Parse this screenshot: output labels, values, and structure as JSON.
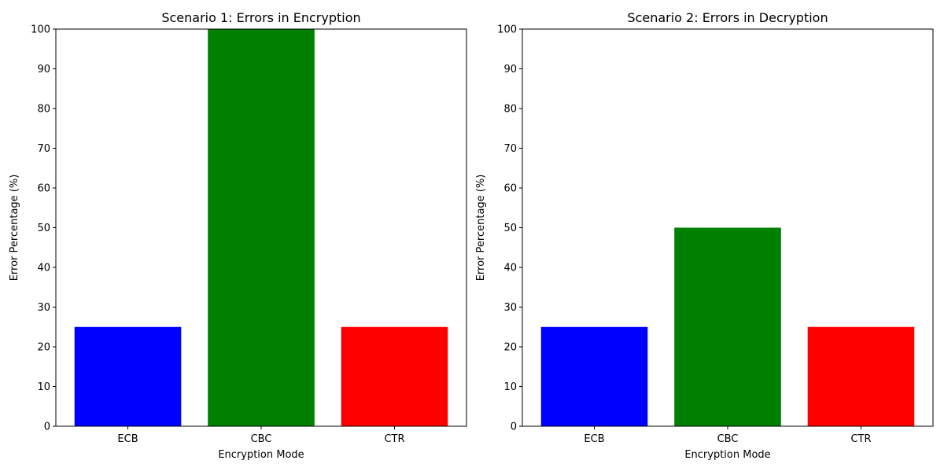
{
  "chart_data": [
    {
      "type": "bar",
      "title": "Scenario 1: Errors in Encryption",
      "xlabel": "Encryption Mode",
      "ylabel": "Error Percentage (%)",
      "categories": [
        "ECB",
        "CBC",
        "CTR"
      ],
      "values": [
        25,
        100,
        25
      ],
      "colors": [
        "#0000ff",
        "#008000",
        "#ff0000"
      ],
      "ylim": [
        0,
        100
      ],
      "yticks": [
        0,
        10,
        20,
        30,
        40,
        50,
        60,
        70,
        80,
        90,
        100
      ],
      "grid": false
    },
    {
      "type": "bar",
      "title": "Scenario 2: Errors in Decryption",
      "xlabel": "Encryption Mode",
      "ylabel": "Error Percentage (%)",
      "categories": [
        "ECB",
        "CBC",
        "CTR"
      ],
      "values": [
        25,
        50,
        25
      ],
      "colors": [
        "#0000ff",
        "#008000",
        "#ff0000"
      ],
      "ylim": [
        0,
        100
      ],
      "yticks": [
        0,
        10,
        20,
        30,
        40,
        50,
        60,
        70,
        80,
        90,
        100
      ],
      "grid": false
    }
  ]
}
